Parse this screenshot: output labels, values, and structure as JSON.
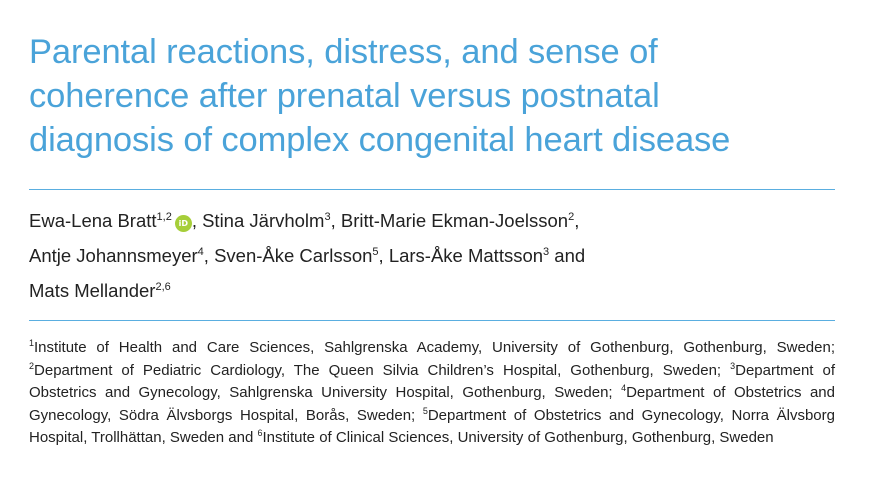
{
  "article": {
    "title_lines": [
      "Parental reactions, distress, and sense of",
      "coherence after prenatal versus postnatal",
      "diagnosis of complex congenital heart disease"
    ],
    "orcid_label": "iD",
    "authors": [
      {
        "name": "Ewa-Lena Bratt",
        "sup": "1,2",
        "sep": ", "
      },
      {
        "name": "Stina Järvholm",
        "sup": "3",
        "sep": ", "
      },
      {
        "name": "Britt-Marie Ekman-Joelsson",
        "sup": "2",
        "sep": ","
      },
      {
        "name": "Antje Johannsmeyer",
        "sup": "4",
        "sep": ", "
      },
      {
        "name": "Sven-Åke Carlsson",
        "sup": "5",
        "sep": ", "
      },
      {
        "name": "Lars-Åke Mattsson",
        "sup": "3",
        "sep": " and"
      },
      {
        "name": "Mats Mellander",
        "sup": "2,6",
        "sep": ""
      }
    ],
    "affiliations": [
      {
        "sup": "1",
        "text": "Institute of Health and Care Sciences, Sahlgrenska Academy, University of Gothenburg, Gothenburg, Sweden; "
      },
      {
        "sup": "2",
        "text": "Department of Pediatric Cardiology, The Queen Silvia Children’s Hospital, Gothenburg, Sweden; "
      },
      {
        "sup": "3",
        "text": "Department of Obstetrics and Gynecology, Sahlgrenska University Hospital, Gothenburg, Sweden; "
      },
      {
        "sup": "4",
        "text": "Department of Obstetrics and Gynecology, Södra Älvsborgs Hospital, Borås, Sweden; "
      },
      {
        "sup": "5",
        "text": "Department of Obstetrics and Gynecology, Norra Älvsborg Hospital, Trollhättan, Sweden and "
      },
      {
        "sup": "6",
        "text": "Institute of Clinical Sciences, University of Gothenburg, Gothenburg, Sweden"
      }
    ]
  },
  "colors": {
    "title": "#4aa3d9",
    "rule": "#5aaee0",
    "text": "#222222",
    "orcid": "#a6ce39"
  }
}
